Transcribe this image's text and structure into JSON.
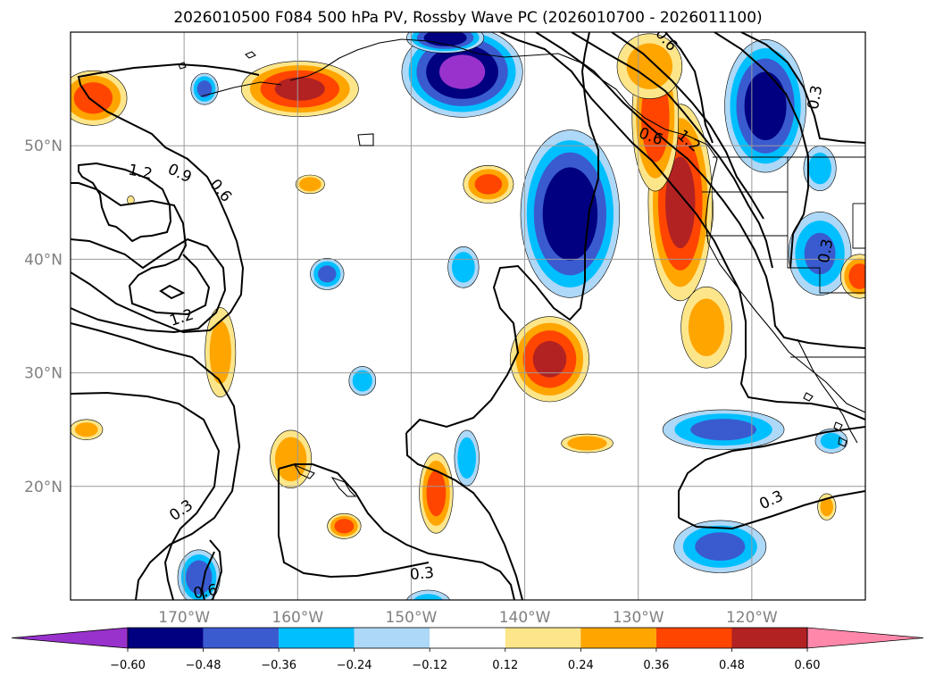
{
  "chart_data": {
    "type": "contour-map",
    "title": "2026010500 F084 500 hPa PV, Rossby Wave PC (2026010700 - 2026011100)",
    "projection": "PlateCarree",
    "lon_range": [
      -180,
      -110
    ],
    "lat_range": [
      10,
      60
    ],
    "lon_ticks": [
      -170,
      -160,
      -150,
      -140,
      -130,
      -120
    ],
    "lon_tick_labels": [
      "170°W",
      "160°W",
      "150°W",
      "140°W",
      "130°W",
      "120°W"
    ],
    "lat_ticks": [
      20,
      30,
      40,
      50
    ],
    "lat_tick_labels": [
      "20°N",
      "30°N",
      "40°N",
      "50°N"
    ],
    "gridlines": true,
    "filled_field": "Rossby Wave PC",
    "contour_field": "500 hPa PV",
    "contour_label_values": [
      "1.2",
      "0.9",
      "0.6",
      "1.2",
      "0.3",
      "0.6",
      "0.3",
      "0.3",
      "0.6",
      "1.2",
      "0.6",
      "0.3",
      "0.3"
    ],
    "colorbar": {
      "extend": "both",
      "levels": [
        -0.6,
        -0.48,
        -0.36,
        -0.24,
        -0.12,
        0.12,
        0.24,
        0.36,
        0.48,
        0.6
      ],
      "tick_labels": [
        "−0.60",
        "−0.48",
        "−0.36",
        "−0.24",
        "−0.12",
        "0.12",
        "0.24",
        "0.36",
        "0.48",
        "0.60"
      ],
      "colors": [
        "#9932cc",
        "#000080",
        "#3a5bd0",
        "#00bfff",
        "#add8f7",
        "#ffffff",
        "#fde68a",
        "#ffa500",
        "#ff4500",
        "#b22222",
        "#ff88aa"
      ]
    },
    "anomalies": [
      {
        "lon": -145.5,
        "lat": 56.5,
        "value": -0.62,
        "rx": 5.6,
        "ry": 4.2
      },
      {
        "lon": -118.8,
        "lat": 53.5,
        "value": -0.55,
        "rx": 3.8,
        "ry": 6.2
      },
      {
        "lon": -136.0,
        "lat": 44.0,
        "value": -0.58,
        "rx": 4.6,
        "ry": 7.8
      },
      {
        "lon": -168.2,
        "lat": 55.0,
        "value": -0.4,
        "rx": 1.3,
        "ry": 1.5
      },
      {
        "lon": -157.4,
        "lat": 38.7,
        "value": -0.4,
        "rx": 1.6,
        "ry": 1.5
      },
      {
        "lon": -145.4,
        "lat": 39.3,
        "value": -0.33,
        "rx": 1.5,
        "ry": 2.0
      },
      {
        "lon": -154.3,
        "lat": 29.3,
        "value": -0.33,
        "rx": 1.3,
        "ry": 1.4
      },
      {
        "lon": -145.1,
        "lat": 22.5,
        "value": -0.33,
        "rx": 1.2,
        "ry": 2.7
      },
      {
        "lon": -122.5,
        "lat": 25.0,
        "value": -0.4,
        "rx": 5.8,
        "ry": 1.9
      },
      {
        "lon": -122.8,
        "lat": 14.7,
        "value": -0.4,
        "rx": 4.4,
        "ry": 2.5
      },
      {
        "lon": -168.7,
        "lat": 12.0,
        "value": -0.45,
        "rx": 2.0,
        "ry": 2.6
      },
      {
        "lon": -114.0,
        "lat": 40.5,
        "value": -0.38,
        "rx": 3.0,
        "ry": 4.0
      },
      {
        "lon": -114.0,
        "lat": 48.0,
        "value": -0.3,
        "rx": 1.6,
        "ry": 2.2
      },
      {
        "lon": -113.0,
        "lat": 24.0,
        "value": -0.28,
        "rx": 1.6,
        "ry": 1.2
      },
      {
        "lon": -148.5,
        "lat": 9.7,
        "value": -0.3,
        "rx": 2.2,
        "ry": 1.3
      },
      {
        "lon": -147.0,
        "lat": 59.5,
        "value": -0.58,
        "rx": 3.6,
        "ry": 1.4
      },
      {
        "lon": -159.8,
        "lat": 55.0,
        "value": 0.5,
        "rx": 5.5,
        "ry": 2.6
      },
      {
        "lon": -178.0,
        "lat": 54.2,
        "value": 0.42,
        "rx": 3.2,
        "ry": 2.6
      },
      {
        "lon": -125.3,
        "lat": 44.3,
        "value": 0.63,
        "rx": 2.0,
        "ry": 4.2
      },
      {
        "lon": -126.3,
        "lat": 45.0,
        "value": 0.52,
        "rx": 3.0,
        "ry": 9.2
      },
      {
        "lon": -128.5,
        "lat": 52.5,
        "value": 0.44,
        "rx": 2.2,
        "ry": 7.0
      },
      {
        "lon": -129.0,
        "lat": 57.0,
        "value": 0.3,
        "rx": 3.2,
        "ry": 3.2
      },
      {
        "lon": -124.0,
        "lat": 34.0,
        "value": 0.3,
        "rx": 2.5,
        "ry": 4.0
      },
      {
        "lon": -137.8,
        "lat": 31.2,
        "value": 0.5,
        "rx": 3.7,
        "ry": 4.0
      },
      {
        "lon": -143.2,
        "lat": 46.6,
        "value": 0.4,
        "rx": 2.4,
        "ry": 1.8
      },
      {
        "lon": -158.9,
        "lat": 46.6,
        "value": 0.35,
        "rx": 1.4,
        "ry": 0.9
      },
      {
        "lon": -166.8,
        "lat": 31.8,
        "value": 0.3,
        "rx": 1.5,
        "ry": 4.4
      },
      {
        "lon": -160.6,
        "lat": 22.4,
        "value": 0.35,
        "rx": 2.0,
        "ry": 2.8
      },
      {
        "lon": -147.8,
        "lat": 19.4,
        "value": 0.42,
        "rx": 1.6,
        "ry": 3.8
      },
      {
        "lon": -155.9,
        "lat": 16.5,
        "value": 0.42,
        "rx": 1.6,
        "ry": 1.2
      },
      {
        "lon": -134.5,
        "lat": 23.8,
        "value": 0.35,
        "rx": 2.5,
        "ry": 0.9
      },
      {
        "lon": -178.6,
        "lat": 25.0,
        "value": 0.3,
        "rx": 1.6,
        "ry": 1.0
      },
      {
        "lon": -113.4,
        "lat": 18.2,
        "value": 0.3,
        "rx": 0.9,
        "ry": 1.3
      },
      {
        "lon": -110.5,
        "lat": 38.5,
        "value": 0.42,
        "rx": 1.8,
        "ry": 2.1
      },
      {
        "lon": -174.7,
        "lat": 45.2,
        "value": 0.15,
        "rx": 0.4,
        "ry": 0.5
      }
    ]
  }
}
